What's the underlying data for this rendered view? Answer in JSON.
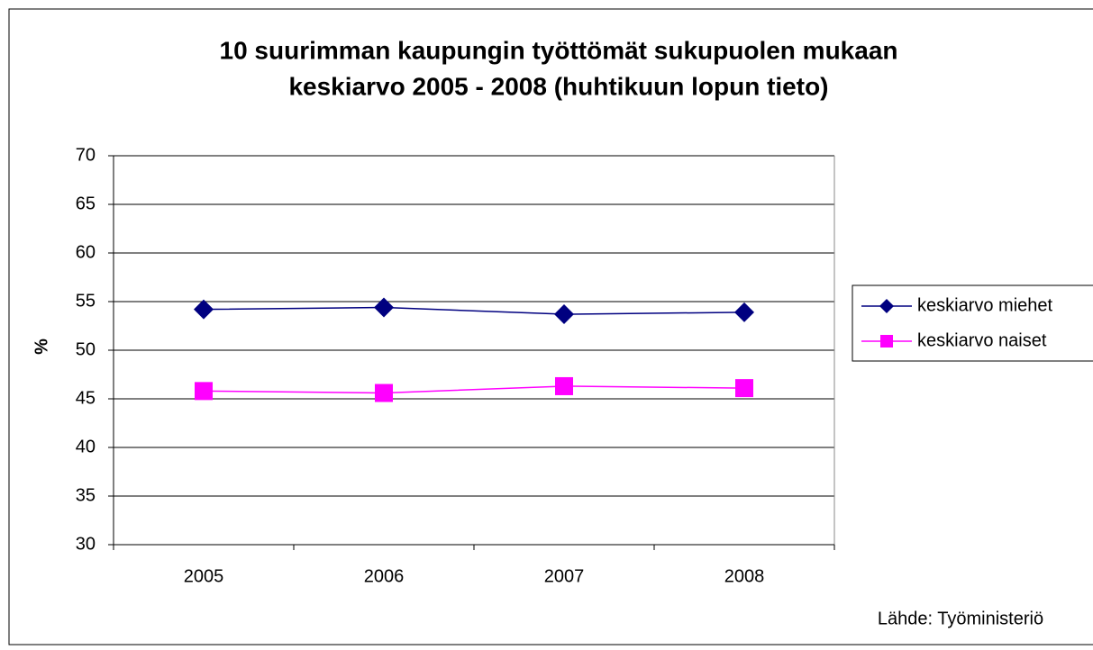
{
  "chart_data": {
    "type": "line",
    "title": [
      "10 suurimman kaupungin työttömät sukupuolen mukaan",
      "keskiarvo 2005 - 2008 (huhtikuun lopun tieto)"
    ],
    "y_label": "%",
    "source": "Lähde: Työministeriö",
    "categories": [
      "2005",
      "2006",
      "2007",
      "2008"
    ],
    "series": [
      {
        "name": "keskiarvo miehet",
        "color": "#000080",
        "marker": "diamond",
        "values": [
          54.2,
          54.4,
          53.7,
          53.9
        ]
      },
      {
        "name": "keskiarvo naiset",
        "color": "#ff00ff",
        "marker": "square",
        "values": [
          45.8,
          45.6,
          46.3,
          46.1
        ]
      }
    ],
    "ylim": [
      30,
      70
    ],
    "yticks": [
      30,
      35,
      40,
      45,
      50,
      55,
      60,
      65,
      70
    ],
    "grid": true,
    "legend": "right"
  }
}
